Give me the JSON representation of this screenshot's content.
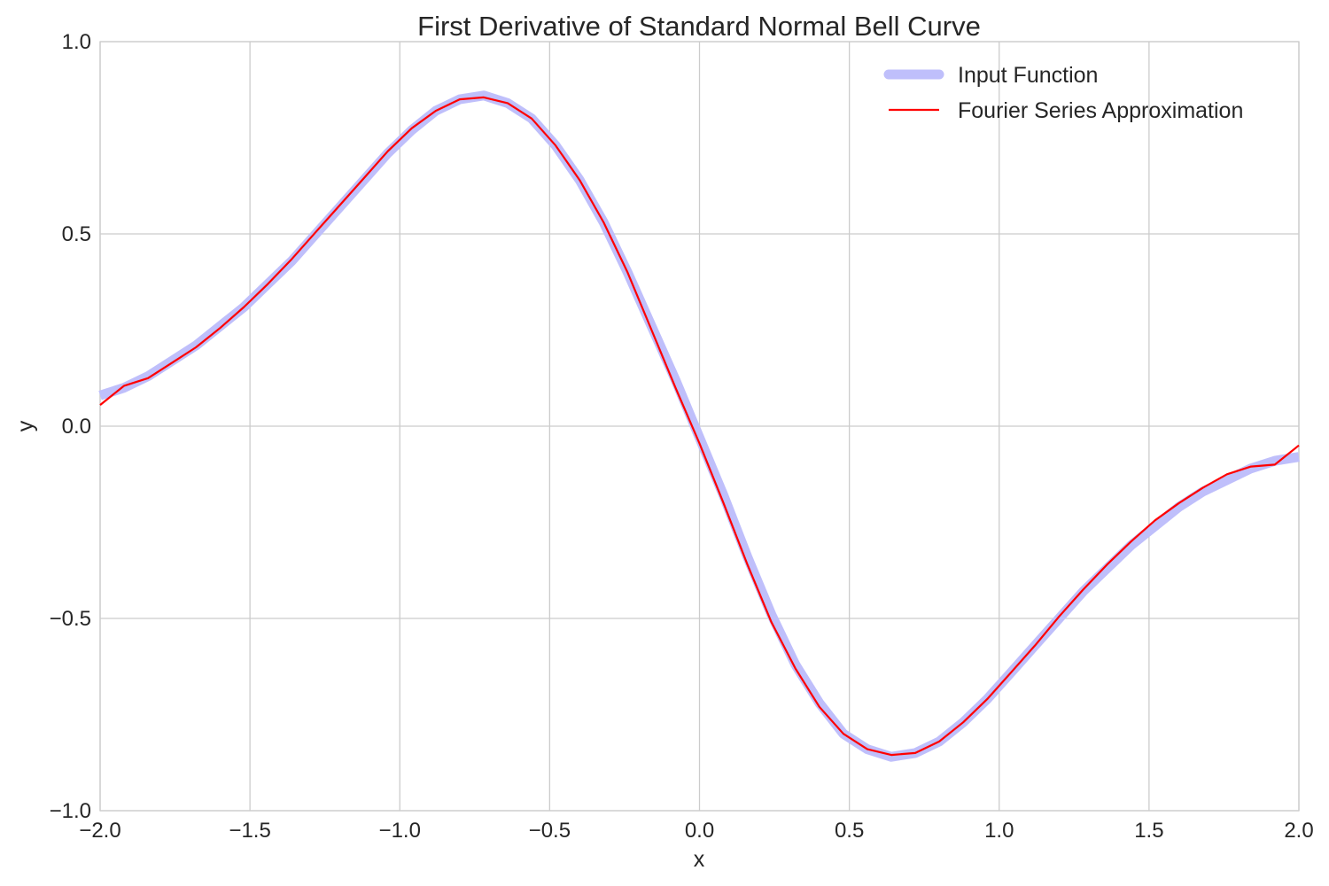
{
  "chart_data": {
    "type": "line",
    "title": "First Derivative of Standard Normal Bell Curve",
    "xlabel": "x",
    "ylabel": "y",
    "xlim": [
      -2.0,
      2.0
    ],
    "ylim": [
      -1.0,
      1.0
    ],
    "x_ticks": [
      -2.0,
      -1.5,
      -1.0,
      -0.5,
      0.0,
      0.5,
      1.0,
      1.5,
      2.0
    ],
    "x_tick_labels": [
      "−2.0",
      "−1.5",
      "−1.0",
      "−0.5",
      "0.0",
      "0.5",
      "1.0",
      "1.5",
      "2.0"
    ],
    "y_ticks": [
      -1.0,
      -0.5,
      0.0,
      0.5,
      1.0
    ],
    "y_tick_labels": [
      "−1.0",
      "−0.5",
      "0.0",
      "0.5",
      "1.0"
    ],
    "grid": true,
    "legend_position": "top-right",
    "x": [
      -2.0,
      -1.92,
      -1.84,
      -1.76,
      -1.68,
      -1.6,
      -1.52,
      -1.44,
      -1.36,
      -1.28,
      -1.2,
      -1.12,
      -1.04,
      -0.96,
      -0.88,
      -0.8,
      -0.72,
      -0.64,
      -0.56,
      -0.48,
      -0.4,
      -0.32,
      -0.24,
      -0.16,
      -0.08,
      0.0,
      0.08,
      0.16,
      0.24,
      0.32,
      0.4,
      0.48,
      0.56,
      0.64,
      0.72,
      0.8,
      0.88,
      0.96,
      1.04,
      1.12,
      1.2,
      1.28,
      1.36,
      1.44,
      1.52,
      1.6,
      1.68,
      1.76,
      1.84,
      1.92,
      2.0
    ],
    "series": [
      {
        "name": "Input Function",
        "color": "#bfbffb",
        "values": [
          0.08,
          0.1,
          0.13,
          0.17,
          0.21,
          0.26,
          0.31,
          0.37,
          0.43,
          0.5,
          0.57,
          0.64,
          0.71,
          0.77,
          0.82,
          0.85,
          0.86,
          0.84,
          0.8,
          0.73,
          0.64,
          0.53,
          0.4,
          0.26,
          0.12,
          -0.03,
          -0.18,
          -0.34,
          -0.49,
          -0.62,
          -0.72,
          -0.8,
          -0.84,
          -0.86,
          -0.85,
          -0.82,
          -0.77,
          -0.71,
          -0.64,
          -0.57,
          -0.5,
          -0.43,
          -0.37,
          -0.31,
          -0.26,
          -0.21,
          -0.17,
          -0.14,
          -0.11,
          -0.09,
          -0.08
        ]
      },
      {
        "name": "Fourier Series Approximation",
        "color": "#ff0000",
        "values": [
          0.055,
          0.105,
          0.125,
          0.165,
          0.205,
          0.255,
          0.31,
          0.37,
          0.435,
          0.505,
          0.575,
          0.645,
          0.715,
          0.775,
          0.82,
          0.85,
          0.855,
          0.84,
          0.8,
          0.73,
          0.64,
          0.53,
          0.4,
          0.25,
          0.1,
          -0.045,
          -0.2,
          -0.36,
          -0.51,
          -0.63,
          -0.73,
          -0.8,
          -0.84,
          -0.855,
          -0.85,
          -0.82,
          -0.77,
          -0.71,
          -0.64,
          -0.57,
          -0.495,
          -0.425,
          -0.36,
          -0.3,
          -0.245,
          -0.2,
          -0.16,
          -0.125,
          -0.105,
          -0.1,
          -0.05
        ]
      }
    ]
  }
}
